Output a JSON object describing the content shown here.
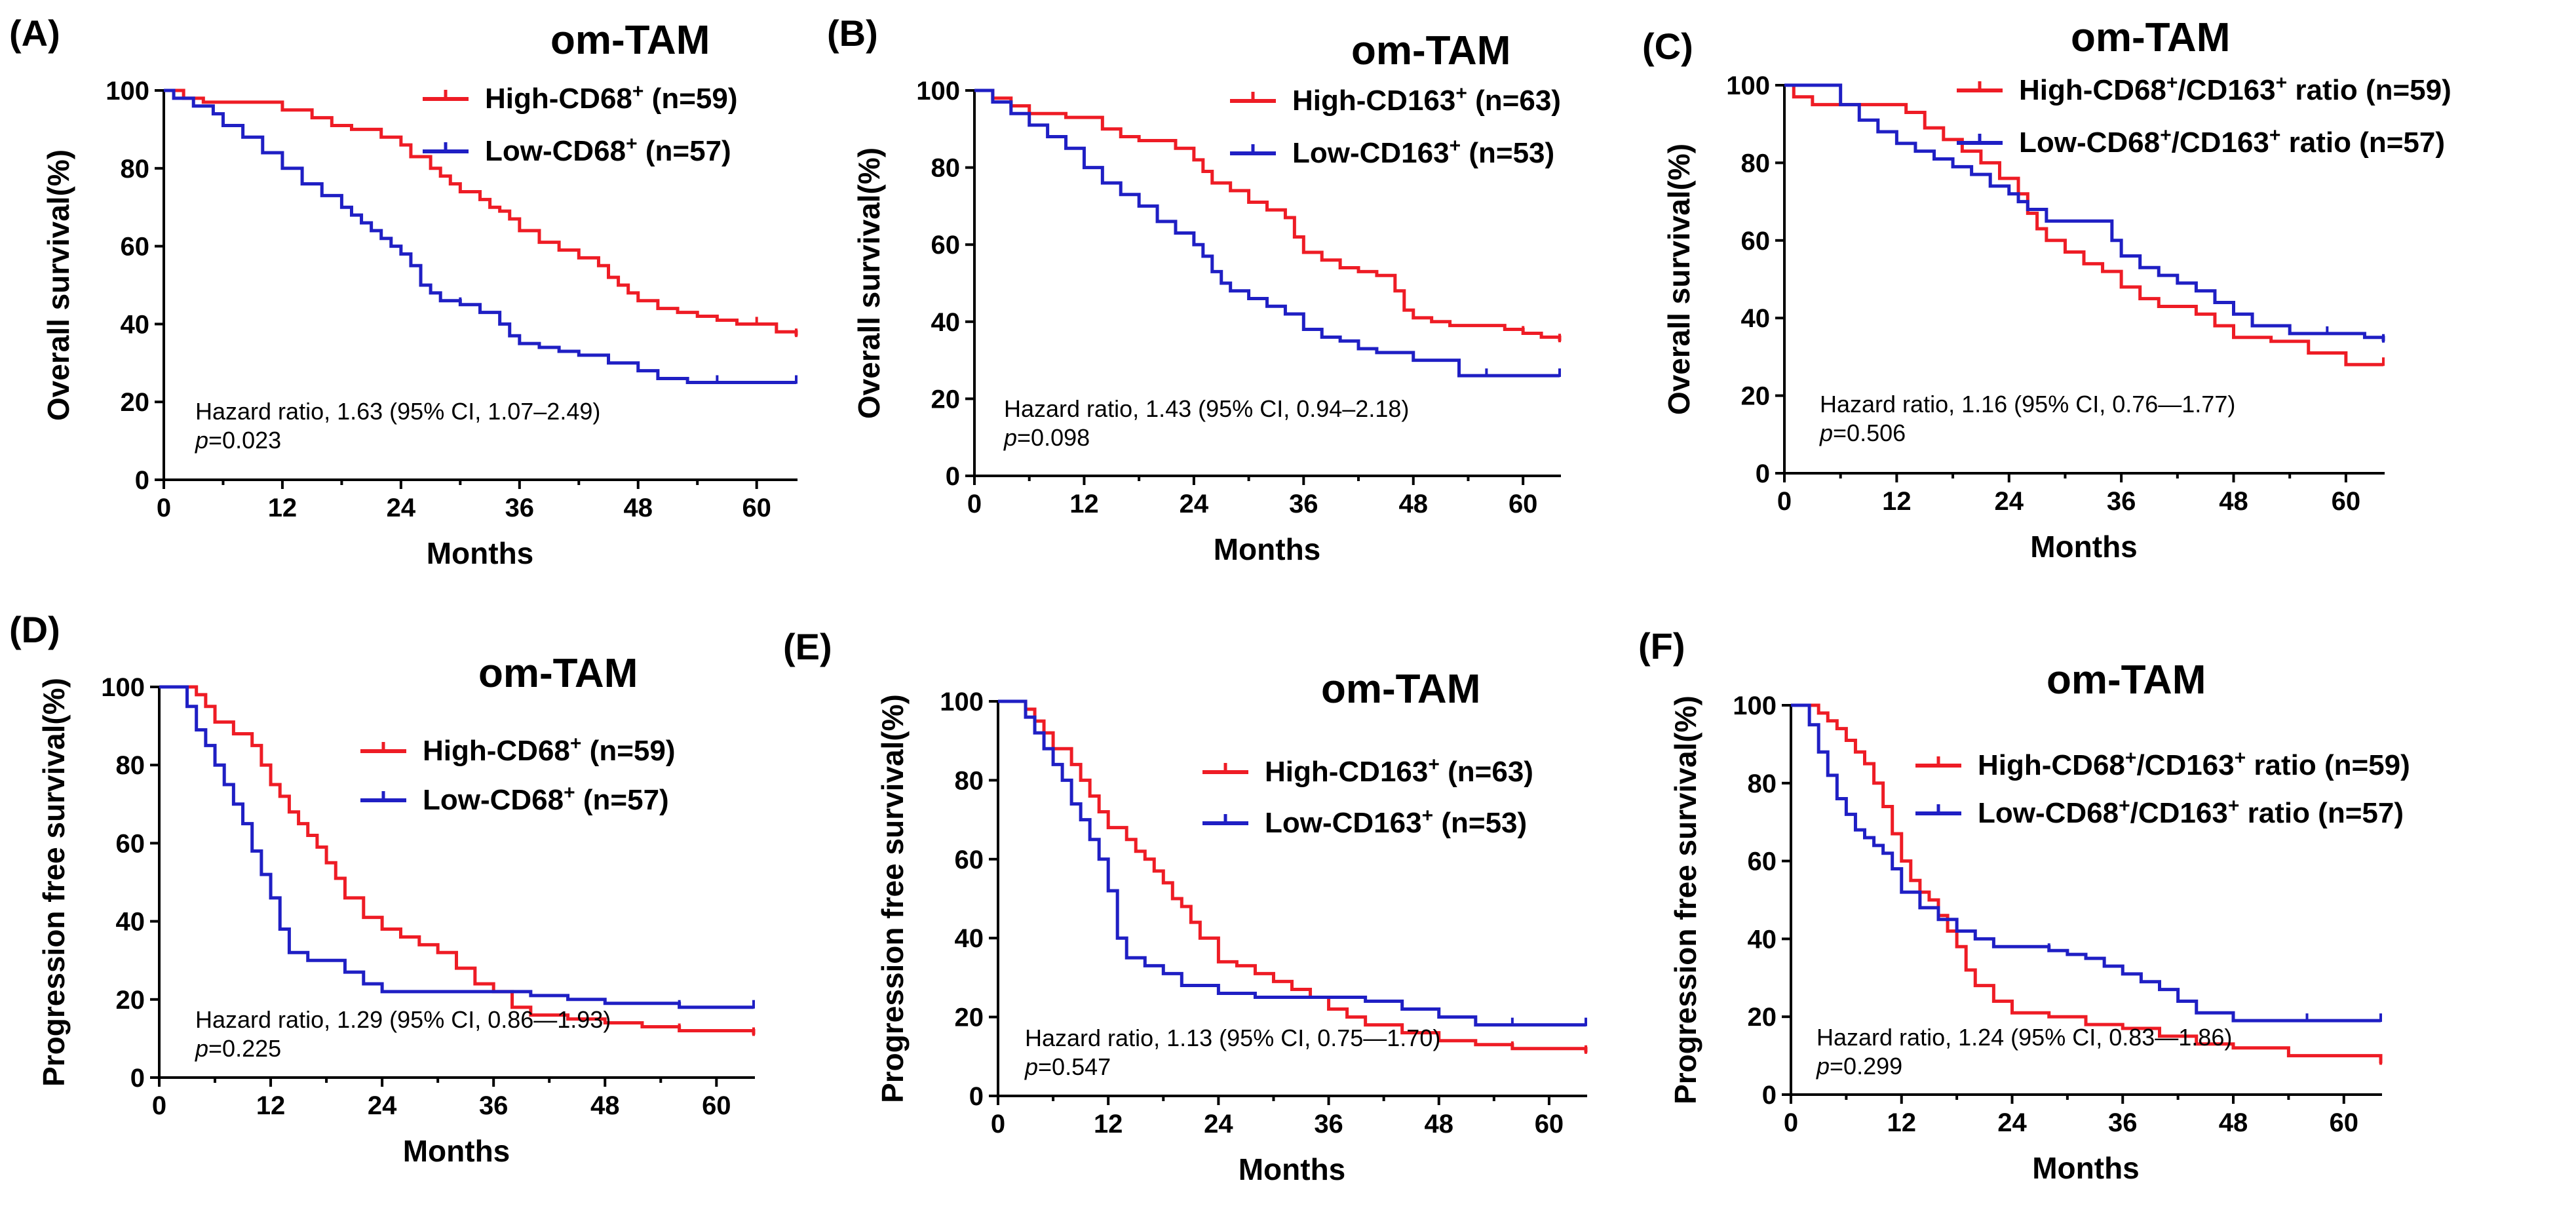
{
  "colors": {
    "high": "#ee1c25",
    "low": "#1f1fc4",
    "axis": "#000000"
  },
  "chart_data": [
    {
      "type": "line",
      "panel_label": "(A)",
      "title": "om-TAM",
      "xlabel": "Months",
      "ylabel": "Overall survival(%)",
      "xlim": [
        0,
        64
      ],
      "ylim": [
        0,
        100
      ],
      "xticks": [
        0,
        12,
        24,
        36,
        48,
        60
      ],
      "yticks": [
        0,
        20,
        40,
        60,
        80,
        100
      ],
      "legend_position": "top-right",
      "hazard_ratio": "Hazard ratio, 1.63 (95% CI, 1.07–2.49)",
      "p_prefix": "p",
      "p_value": "=0.023",
      "series": [
        {
          "name": "High-CD68",
          "sup": "+",
          "n": " (n=59)",
          "color_key": "high",
          "x": [
            0,
            2,
            4,
            7,
            12,
            15,
            17,
            19,
            22,
            24,
            25,
            27,
            28,
            29,
            30,
            32,
            33,
            34,
            35,
            36,
            38,
            40,
            42,
            44,
            45,
            46,
            47,
            48,
            50,
            52,
            54,
            56,
            58,
            60,
            62,
            64
          ],
          "y": [
            100,
            98,
            97,
            97,
            95,
            93,
            91,
            90,
            88,
            86,
            83,
            80,
            78,
            76,
            74,
            72,
            70,
            69,
            67,
            64,
            61,
            59,
            57,
            55,
            52,
            50,
            48,
            46,
            44,
            43,
            42,
            41,
            40,
            40,
            38,
            37
          ]
        },
        {
          "name": "Low-CD68",
          "sup": "+",
          "n": " (n=57)",
          "color_key": "low",
          "x": [
            0,
            1,
            3,
            5,
            6,
            8,
            10,
            12,
            14,
            16,
            18,
            19,
            20,
            21,
            22,
            23,
            24,
            25,
            26,
            27,
            28,
            30,
            32,
            34,
            35,
            36,
            38,
            40,
            42,
            45,
            48,
            50,
            53,
            56,
            60,
            64
          ],
          "y": [
            100,
            98,
            96,
            94,
            91,
            88,
            84,
            80,
            76,
            73,
            70,
            68,
            66,
            64,
            62,
            60,
            58,
            55,
            50,
            48,
            46,
            45,
            43,
            40,
            37,
            35,
            34,
            33,
            32,
            30,
            28,
            26,
            25,
            25,
            25,
            25
          ]
        }
      ]
    },
    {
      "type": "line",
      "panel_label": "(B)",
      "title": "om-TAM",
      "xlabel": "Months",
      "ylabel": "Overall survival(%)",
      "xlim": [
        0,
        64
      ],
      "ylim": [
        0,
        100
      ],
      "xticks": [
        0,
        12,
        24,
        36,
        48,
        60
      ],
      "yticks": [
        0,
        20,
        40,
        60,
        80,
        100
      ],
      "legend_position": "top-right",
      "hazard_ratio": "Hazard ratio, 1.43 (95% CI, 0.94–2.18)",
      "p_prefix": "p",
      "p_value": "=0.098",
      "series": [
        {
          "name": "High-CD163",
          "sup": "+",
          "n": " (n=63)",
          "color_key": "high",
          "x": [
            0,
            2,
            4,
            6,
            10,
            14,
            16,
            18,
            22,
            24,
            25,
            26,
            28,
            30,
            32,
            34,
            35,
            36,
            38,
            40,
            42,
            44,
            46,
            47,
            48,
            50,
            52,
            54,
            56,
            58,
            60,
            62,
            64
          ],
          "y": [
            100,
            98,
            96,
            94,
            93,
            90,
            88,
            87,
            85,
            82,
            79,
            76,
            74,
            71,
            69,
            67,
            62,
            58,
            56,
            54,
            53,
            52,
            48,
            43,
            41,
            40,
            39,
            39,
            39,
            38,
            37,
            36,
            35
          ]
        },
        {
          "name": "Low-CD163",
          "sup": "+",
          "n": " (n=53)",
          "color_key": "low",
          "x": [
            0,
            2,
            4,
            6,
            8,
            10,
            12,
            14,
            16,
            18,
            20,
            22,
            24,
            25,
            26,
            27,
            28,
            30,
            32,
            34,
            36,
            38,
            40,
            42,
            44,
            48,
            53,
            56,
            60,
            64
          ],
          "y": [
            100,
            97,
            94,
            91,
            88,
            85,
            80,
            76,
            73,
            70,
            66,
            63,
            60,
            57,
            53,
            50,
            48,
            46,
            44,
            42,
            38,
            36,
            35,
            33,
            32,
            30,
            26,
            26,
            26,
            26
          ]
        }
      ]
    },
    {
      "type": "line",
      "panel_label": "(C)",
      "title": "om-TAM",
      "xlabel": "Months",
      "ylabel": "Overall survival(%)",
      "xlim": [
        0,
        64
      ],
      "ylim": [
        0,
        100
      ],
      "xticks": [
        0,
        12,
        24,
        36,
        48,
        60
      ],
      "yticks": [
        0,
        20,
        40,
        60,
        80,
        100
      ],
      "legend_position": "top-right",
      "hazard_ratio": "Hazard ratio, 1.16 (95% CI, 0.76—1.77)",
      "p_prefix": "p",
      "p_value": "=0.506",
      "series": [
        {
          "name": "High-CD68",
          "sup": "+",
          "name2": "/CD163",
          "sup2": "+",
          "n": " ratio (n=59)",
          "color_key": "high",
          "x": [
            0,
            1,
            3,
            6,
            10,
            13,
            15,
            17,
            19,
            21,
            23,
            25,
            26,
            27,
            28,
            30,
            32,
            34,
            36,
            38,
            40,
            44,
            46,
            48,
            52,
            56,
            60,
            64
          ],
          "y": [
            100,
            97,
            95,
            95,
            95,
            93,
            89,
            86,
            83,
            80,
            76,
            72,
            67,
            63,
            60,
            57,
            54,
            52,
            48,
            45,
            43,
            41,
            38,
            35,
            34,
            31,
            28,
            28
          ]
        },
        {
          "name": "Low-CD68",
          "sup": "+",
          "name2": "/CD163",
          "sup2": "+",
          "n": " ratio (n=57)",
          "color_key": "low",
          "x": [
            0,
            4,
            6,
            8,
            10,
            12,
            14,
            16,
            18,
            20,
            22,
            24,
            25,
            26,
            28,
            30,
            32,
            34,
            35,
            36,
            38,
            40,
            42,
            44,
            46,
            48,
            50,
            54,
            58,
            62,
            64
          ],
          "y": [
            100,
            100,
            95,
            91,
            88,
            85,
            83,
            81,
            79,
            77,
            74,
            72,
            70,
            68,
            65,
            65,
            65,
            65,
            60,
            56,
            53,
            51,
            49,
            47,
            44,
            41,
            38,
            36,
            36,
            35,
            34
          ]
        }
      ]
    },
    {
      "type": "line",
      "panel_label": "(D)",
      "title": "om-TAM",
      "xlabel": "Months",
      "ylabel": "Progression free survival(%)",
      "xlim": [
        0,
        64
      ],
      "ylim": [
        0,
        100
      ],
      "xticks": [
        0,
        12,
        24,
        36,
        48,
        60
      ],
      "yticks": [
        0,
        20,
        40,
        60,
        80,
        100
      ],
      "legend_position": "top-right",
      "hazard_ratio": "Hazard ratio, 1.29 (95% CI, 0.86—1.93)",
      "p_prefix": "p",
      "p_value": "=0.225",
      "series": [
        {
          "name": "High-CD68",
          "sup": "+",
          "n": " (n=59)",
          "color_key": "high",
          "x": [
            0,
            2,
            4,
            5,
            6,
            8,
            10,
            11,
            12,
            13,
            14,
            15,
            16,
            17,
            18,
            19,
            20,
            22,
            24,
            26,
            28,
            30,
            32,
            34,
            36,
            38,
            40,
            44,
            48,
            52,
            56,
            60,
            64
          ],
          "y": [
            100,
            100,
            98,
            95,
            91,
            88,
            85,
            80,
            75,
            72,
            68,
            65,
            62,
            59,
            55,
            51,
            46,
            41,
            38,
            36,
            34,
            32,
            28,
            24,
            22,
            18,
            16,
            15,
            14,
            13,
            12,
            12,
            11
          ]
        },
        {
          "name": "Low-CD68",
          "sup": "+",
          "n": " (n=57)",
          "color_key": "low",
          "x": [
            0,
            2,
            3,
            4,
            5,
            6,
            7,
            8,
            9,
            10,
            11,
            12,
            13,
            14,
            16,
            18,
            20,
            22,
            24,
            28,
            32,
            36,
            40,
            44,
            48,
            51,
            56,
            60,
            64
          ],
          "y": [
            100,
            100,
            95,
            89,
            85,
            80,
            75,
            70,
            65,
            58,
            52,
            46,
            38,
            32,
            30,
            30,
            27,
            24,
            22,
            22,
            22,
            22,
            21,
            20,
            19,
            19,
            18,
            18,
            18
          ]
        }
      ]
    },
    {
      "type": "line",
      "panel_label": "(E)",
      "title": "om-TAM",
      "xlabel": "Months",
      "ylabel": "Progression free survival(%)",
      "xlim": [
        0,
        64
      ],
      "ylim": [
        0,
        100
      ],
      "xticks": [
        0,
        12,
        24,
        36,
        48,
        60
      ],
      "yticks": [
        0,
        20,
        40,
        60,
        80,
        100
      ],
      "legend_position": "top-right",
      "hazard_ratio": "Hazard ratio, 1.13 (95% CI, 0.75—1.70)",
      "p_prefix": "p",
      "p_value": "=0.547",
      "series": [
        {
          "name": "High-CD163",
          "sup": "+",
          "n": " (n=63)",
          "color_key": "high",
          "x": [
            0,
            2,
            3,
            4,
            5,
            6,
            8,
            9,
            10,
            11,
            12,
            13,
            14,
            15,
            16,
            17,
            18,
            19,
            20,
            21,
            22,
            24,
            26,
            28,
            30,
            32,
            34,
            36,
            38,
            40,
            44,
            48,
            52,
            56,
            60,
            64
          ],
          "y": [
            100,
            100,
            98,
            95,
            92,
            88,
            84,
            80,
            76,
            72,
            68,
            68,
            65,
            62,
            60,
            57,
            54,
            50,
            48,
            44,
            40,
            34,
            33,
            31,
            29,
            27,
            25,
            22,
            20,
            18,
            16,
            14,
            13,
            12,
            12,
            11
          ]
        },
        {
          "name": "Low-CD163",
          "sup": "+",
          "n": " (n=53)",
          "color_key": "low",
          "x": [
            0,
            2,
            3,
            4,
            5,
            6,
            7,
            8,
            9,
            10,
            11,
            12,
            13,
            14,
            16,
            18,
            20,
            24,
            28,
            32,
            36,
            40,
            44,
            48,
            52,
            56,
            60,
            64
          ],
          "y": [
            100,
            100,
            96,
            92,
            88,
            84,
            80,
            74,
            70,
            65,
            60,
            52,
            40,
            35,
            33,
            31,
            28,
            26,
            25,
            25,
            25,
            24,
            22,
            20,
            18,
            18,
            18,
            18
          ]
        }
      ]
    },
    {
      "type": "line",
      "panel_label": "(F)",
      "title": "om-TAM",
      "xlabel": "Months",
      "ylabel": "Progression free survival(%)",
      "xlim": [
        0,
        64
      ],
      "ylim": [
        0,
        100
      ],
      "xticks": [
        0,
        12,
        24,
        36,
        48,
        60
      ],
      "yticks": [
        0,
        20,
        40,
        60,
        80,
        100
      ],
      "legend_position": "top-right",
      "hazard_ratio": "Hazard ratio, 1.24 (95% CI, 0.83—1.86)",
      "p_prefix": "p",
      "p_value": "=0.299",
      "series": [
        {
          "name": "High-CD68",
          "sup": "+",
          "name2": "/CD163",
          "sup2": "+",
          "n": " ratio (n=59)",
          "color_key": "high",
          "x": [
            0,
            2,
            3,
            4,
            5,
            6,
            7,
            8,
            9,
            10,
            11,
            12,
            13,
            14,
            15,
            16,
            17,
            18,
            19,
            20,
            22,
            24,
            28,
            32,
            36,
            40,
            44,
            48,
            54,
            60,
            64
          ],
          "y": [
            100,
            100,
            98,
            96,
            94,
            91,
            88,
            85,
            80,
            74,
            67,
            60,
            55,
            52,
            50,
            46,
            42,
            38,
            32,
            28,
            24,
            21,
            20,
            18,
            17,
            15,
            13,
            12,
            10,
            10,
            8
          ]
        },
        {
          "name": "Low-CD68",
          "sup": "+",
          "name2": "/CD163",
          "sup2": "+",
          "n": " ratio (n=57)",
          "color_key": "low",
          "x": [
            0,
            2,
            3,
            4,
            5,
            6,
            7,
            8,
            9,
            10,
            11,
            12,
            14,
            16,
            18,
            20,
            22,
            24,
            26,
            28,
            30,
            32,
            34,
            36,
            38,
            40,
            42,
            44,
            48,
            52,
            56,
            60,
            64
          ],
          "y": [
            100,
            95,
            88,
            82,
            76,
            72,
            68,
            66,
            64,
            62,
            58,
            52,
            48,
            45,
            42,
            40,
            38,
            38,
            38,
            37,
            36,
            35,
            33,
            31,
            29,
            27,
            24,
            21,
            19,
            19,
            19,
            19,
            19
          ]
        }
      ]
    }
  ]
}
